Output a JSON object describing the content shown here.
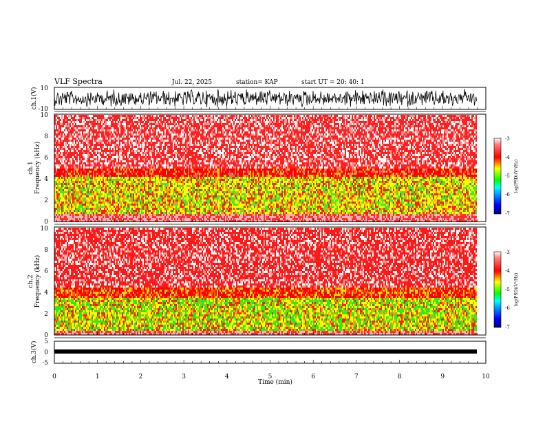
{
  "header": {
    "title": "VLF Spectra",
    "date": "Jul. 22, 2025",
    "station": "station= KAP",
    "start": "start UT =  20: 40: 1"
  },
  "chart_data": [
    {
      "type": "line",
      "name": "ch1-waveform",
      "title": "ch.1(V)",
      "ylabel": "ch.1(V)",
      "ylim": [
        -10,
        10
      ],
      "yticks": [
        "10",
        "-10"
      ],
      "description_values": {
        "amplitude_typical": 8
      }
    },
    {
      "type": "heatmap",
      "name": "ch1-spectrogram",
      "ylabel": "ch.1 Frequency (kHz)",
      "ylim": [
        0,
        10
      ],
      "yticks": [
        "0",
        "2",
        "4",
        "6",
        "8",
        "10"
      ],
      "colorbar": {
        "label": "log(PSD)(V²/Hz)",
        "range": [
          -7,
          -3
        ],
        "ticks": [
          "-3",
          "-4",
          "-5",
          "-6",
          "-7"
        ]
      }
    },
    {
      "type": "heatmap",
      "name": "ch2-spectrogram",
      "ylabel": "ch.2 Frequency (kHz)",
      "ylim": [
        0,
        10
      ],
      "yticks": [
        "0",
        "2",
        "4",
        "6",
        "8",
        "10"
      ],
      "colorbar": {
        "label": "log(PSD)(V²/Hz)",
        "range": [
          -7,
          -3
        ],
        "ticks": [
          "-3",
          "-4",
          "-5",
          "-6",
          "-7"
        ]
      }
    },
    {
      "type": "line",
      "name": "ch3-waveform",
      "title": "ch.3(V)",
      "ylabel": "ch.3(V)",
      "ylim": [
        -5,
        5
      ],
      "yticks": [
        "5",
        "0",
        "-5"
      ]
    }
  ],
  "xaxis": {
    "label": "Time (min)",
    "range": [
      0,
      10
    ],
    "ticks": [
      "0",
      "1",
      "2",
      "3",
      "4",
      "5",
      "6",
      "7",
      "8",
      "9",
      "10"
    ]
  },
  "labels": {
    "ch1_v": "ch.1(V)",
    "ch1_freq_a": "ch.1",
    "ch1_freq_b": "Frequency (kHz)",
    "ch2_freq_a": "ch.2",
    "ch2_freq_b": "Frequency (kHz)",
    "ch3_v": "ch.3(V)",
    "cb_label": "log(PSD)(V²/Hz)"
  }
}
